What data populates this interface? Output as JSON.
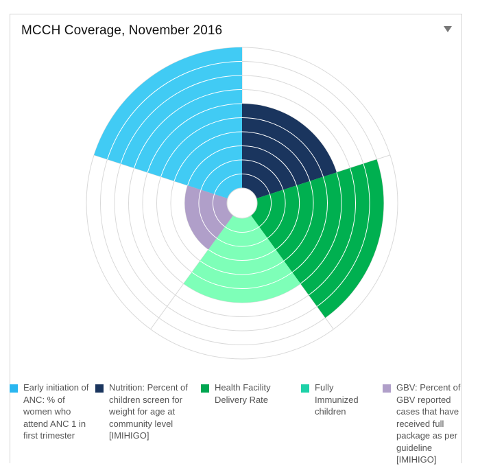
{
  "panel": {
    "title": "MCCH Coverage, November 2016",
    "menu_icon": "dropdown-triangle-icon"
  },
  "chart_data": {
    "type": "polar-area",
    "title": "MCCH Coverage, November 2016",
    "rings": 10,
    "grid": true,
    "legend_position": "bottom",
    "series": [
      {
        "name": "Early initiation of ANC: % of women who attend ANC 1 in first trimester",
        "value": 10,
        "color": "#41cbf4"
      },
      {
        "name": "Nutrition: Percent of children screen for weight for age at community level [IMIHIGO]",
        "value": 6,
        "color": "#1a355e"
      },
      {
        "name": "Health Facility Delivery Rate",
        "value": 9,
        "color": "#00b050"
      },
      {
        "name": "Fully Immunized children",
        "value": 6,
        "color": "#7effb8"
      },
      {
        "name": "GBV: Percent of GBV reported cases that have received full package as per guideline [IMIHIGO]",
        "value": 3,
        "color": "#b09fc9"
      }
    ]
  },
  "legend": {
    "items": [
      {
        "label": "Early initiation of ANC: % of women who attend ANC 1 in first trimester",
        "color": "#29b6f0"
      },
      {
        "label": "Nutrition: Percent of children screen for weight for age at community level [IMIHIGO]",
        "color": "#1a355e"
      },
      {
        "label": "Health Facility Delivery Rate",
        "color": "#00a651"
      },
      {
        "label": "Fully Immunized children",
        "color": "#1ed1a8"
      },
      {
        "label": "GBV: Percent of GBV reported cases that have received full package as per guideline [IMIHIGO]",
        "color": "#b09fc9"
      }
    ]
  }
}
